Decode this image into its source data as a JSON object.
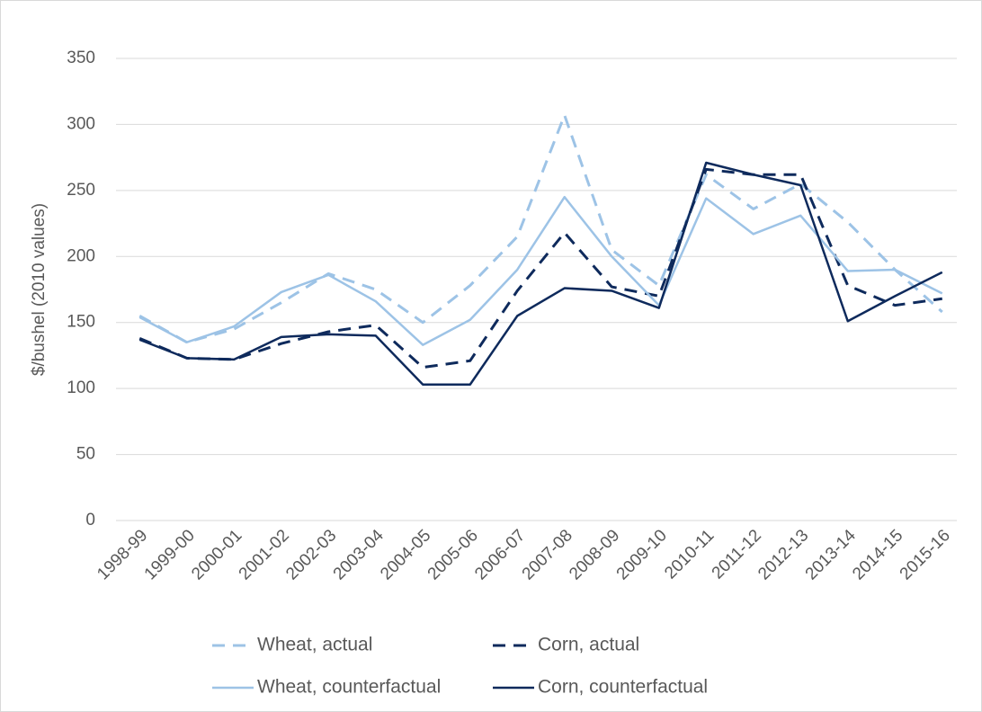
{
  "chart_data": {
    "type": "line",
    "y_label": "$/bushel (2010 values)",
    "categories": [
      "1998-99",
      "1999-00",
      "2000-01",
      "2001-02",
      "2002-03",
      "2003-04",
      "2004-05",
      "2005-06",
      "2006-07",
      "2007-08",
      "2008-09",
      "2009-10",
      "2010-11",
      "2011-12",
      "2012-13",
      "2013-14",
      "2014-15",
      "2015-16"
    ],
    "series": [
      {
        "name": "Wheat, actual",
        "color": "#9dc3e6",
        "dashed": true,
        "values": [
          155,
          135,
          145,
          165,
          187,
          175,
          150,
          178,
          215,
          307,
          205,
          178,
          262,
          236,
          255,
          226,
          190,
          158
        ]
      },
      {
        "name": "Corn, actual",
        "color": "#0e2a5c",
        "dashed": true,
        "values": [
          138,
          123,
          122,
          134,
          143,
          148,
          116,
          121,
          174,
          218,
          177,
          170,
          266,
          262,
          262,
          178,
          163,
          168
        ]
      },
      {
        "name": "Wheat, counterfactual",
        "color": "#9dc3e6",
        "dashed": false,
        "values": [
          154,
          135,
          147,
          173,
          186,
          166,
          133,
          152,
          190,
          245,
          200,
          163,
          244,
          217,
          231,
          189,
          190,
          172
        ]
      },
      {
        "name": "Corn, counterfactual",
        "color": "#0e2a5c",
        "dashed": false,
        "values": [
          137,
          123,
          122,
          139,
          141,
          140,
          103,
          103,
          155,
          176,
          174,
          161,
          271,
          262,
          254,
          151,
          170,
          188
        ]
      }
    ],
    "ylim": [
      0,
      350
    ],
    "yticks": [
      0,
      50,
      100,
      150,
      200,
      250,
      300,
      350
    ],
    "grid": true,
    "legend": "bottom"
  }
}
